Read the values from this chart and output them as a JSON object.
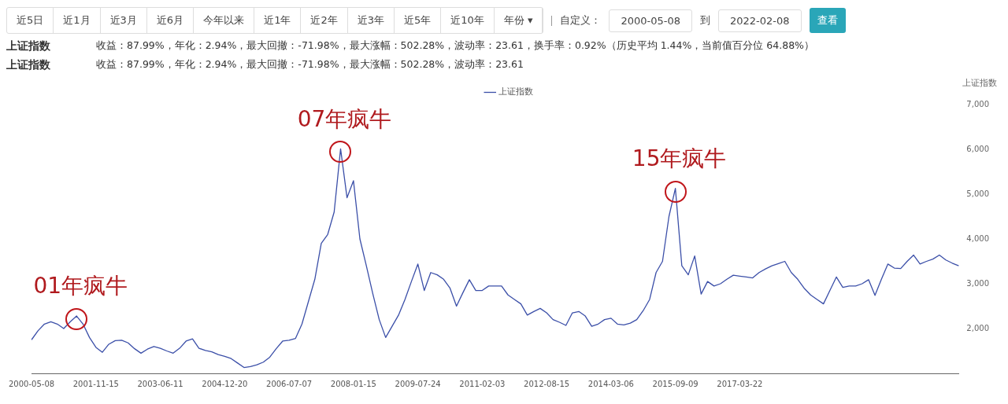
{
  "chart_data": {
    "type": "line",
    "annotations": [
      "近5日",
      "近1月",
      "近3月",
      "近6月",
      "今年以来",
      "近1年",
      "近2年",
      "近3年",
      "近5年",
      "近10年",
      "年份 ▾",
      "自定义：",
      "2000-05-08",
      "到",
      "2022-02-08",
      "查看",
      "上证指数",
      "收益：87.99%，年化：2.94%，最大回撤：-71.98%，最大涨幅：502.28%，波动率：23.61，换手率：0.92%（历史平均 1.44%，当前值百分位 64.88%）",
      "上证指数",
      "收益：87.99%，年化：2.94%，最大回撤：-71.98%，最大涨幅：502.28%，波动率：23.61",
      {
        "text": "01年疯牛",
        "y": 2280
      },
      {
        "text": "07年疯牛",
        "y": 6010
      },
      {
        "text": "15年疯牛",
        "y": 5130
      }
    ],
    "categories": [
      "2000-05-08",
      null,
      null,
      null,
      null,
      null,
      null,
      null,
      null,
      null,
      "2001-11-15",
      null,
      null,
      null,
      null,
      null,
      null,
      null,
      null,
      null,
      "2003-06-11",
      null,
      null,
      null,
      null,
      null,
      null,
      null,
      null,
      null,
      "2004-12-20",
      null,
      null,
      null,
      null,
      null,
      null,
      null,
      null,
      null,
      "2006-07-07",
      null,
      null,
      null,
      null,
      null,
      null,
      null,
      null,
      null,
      "2008-01-15",
      null,
      null,
      null,
      null,
      null,
      null,
      null,
      null,
      null,
      "2009-07-24",
      null,
      null,
      null,
      null,
      null,
      null,
      null,
      null,
      null,
      "2011-02-03",
      null,
      null,
      null,
      null,
      null,
      null,
      null,
      null,
      null,
      "2012-08-15",
      null,
      null,
      null,
      null,
      null,
      null,
      null,
      null,
      null,
      "2014-03-06",
      null,
      null,
      null,
      null,
      null,
      null,
      null,
      null,
      null,
      "2015-09-09",
      null,
      null,
      null,
      null,
      null,
      null,
      null,
      null,
      null,
      "2017-03-22",
      null,
      null,
      null,
      null,
      null,
      null,
      null,
      null,
      null,
      null,
      null,
      null,
      null,
      null,
      null,
      null,
      null,
      null,
      null,
      null,
      null,
      null,
      null,
      null,
      null,
      null,
      null,
      null,
      null,
      null,
      null,
      null,
      null,
      null
    ],
    "series": [
      {
        "name": "上证指数",
        "color": "#3b4fa8",
        "values": [
          1750,
          1950,
          2100,
          2150,
          2100,
          2000,
          2150,
          2280,
          2100,
          1800,
          1580,
          1470,
          1650,
          1730,
          1740,
          1680,
          1550,
          1450,
          1540,
          1600,
          1560,
          1500,
          1450,
          1560,
          1720,
          1770,
          1560,
          1510,
          1480,
          1420,
          1380,
          1330,
          1230,
          1130,
          1150,
          1190,
          1250,
          1360,
          1550,
          1720,
          1740,
          1780,
          2100,
          2600,
          3100,
          3900,
          4100,
          4600,
          6010,
          4920,
          5300,
          4000,
          3400,
          2780,
          2200,
          1800,
          2050,
          2300,
          2650,
          3050,
          3440,
          2850,
          3250,
          3200,
          3100,
          2900,
          2500,
          2800,
          3090,
          2850,
          2850,
          2950,
          2950,
          2950,
          2750,
          2650,
          2550,
          2300,
          2380,
          2450,
          2350,
          2200,
          2140,
          2070,
          2350,
          2380,
          2280,
          2050,
          2100,
          2200,
          2230,
          2100,
          2080,
          2120,
          2200,
          2400,
          2650,
          3250,
          3500,
          4500,
          5130,
          3400,
          3200,
          3620,
          2770,
          3050,
          2950,
          3000,
          3100,
          3190,
          3170,
          3150,
          3130,
          3250,
          3330,
          3400,
          3450,
          3500,
          3250,
          3100,
          2900,
          2750,
          2650,
          2550,
          2850,
          3150,
          2920,
          2950,
          2950,
          3000,
          3090,
          2740,
          3100,
          3440,
          3350,
          3340,
          3500,
          3640,
          3440,
          3500,
          3550,
          3640,
          3530,
          3460,
          3400
        ]
      }
    ],
    "ylabel": "上证指数",
    "ylim": [
      1000,
      7000
    ],
    "yticks": [
      {
        "value": 2000,
        "label": "2,000"
      },
      {
        "value": 3000,
        "label": "3,000"
      },
      {
        "value": 4000,
        "label": "4,000"
      },
      {
        "value": 5000,
        "label": "5,000"
      },
      {
        "value": 6000,
        "label": "6,000"
      },
      {
        "value": 7000,
        "label": "7,000"
      }
    ],
    "legend": "top",
    "marker": "none"
  }
}
